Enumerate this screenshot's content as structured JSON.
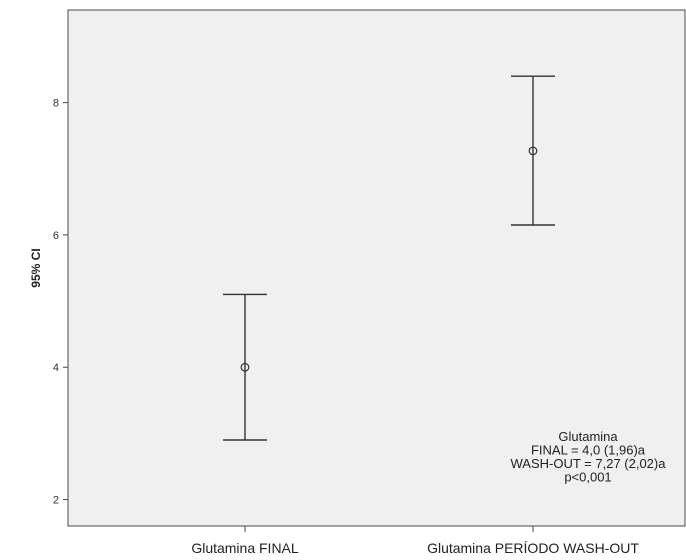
{
  "chart_data": {
    "type": "errorbar",
    "title": "",
    "xlabel": "",
    "ylabel": "95% CI",
    "ylim": [
      1.6,
      9.4
    ],
    "yticks": [
      2,
      4,
      6,
      8
    ],
    "grid": false,
    "categories": [
      "Glutamina FINAL",
      "Glutamina PERÍODO WASH-OUT"
    ],
    "points": [
      {
        "category": "Glutamina FINAL",
        "mean": 4.0,
        "lower": 2.9,
        "upper": 5.1
      },
      {
        "category": "Glutamina PERÍODO WASH-OUT",
        "mean": 7.27,
        "lower": 6.15,
        "upper": 8.4
      }
    ],
    "annotation": [
      "Glutamina",
      "FINAL = 4,0 (1,96)a",
      "WASH-OUT = 7,27 (2,02)a",
      "p<0,001"
    ]
  }
}
